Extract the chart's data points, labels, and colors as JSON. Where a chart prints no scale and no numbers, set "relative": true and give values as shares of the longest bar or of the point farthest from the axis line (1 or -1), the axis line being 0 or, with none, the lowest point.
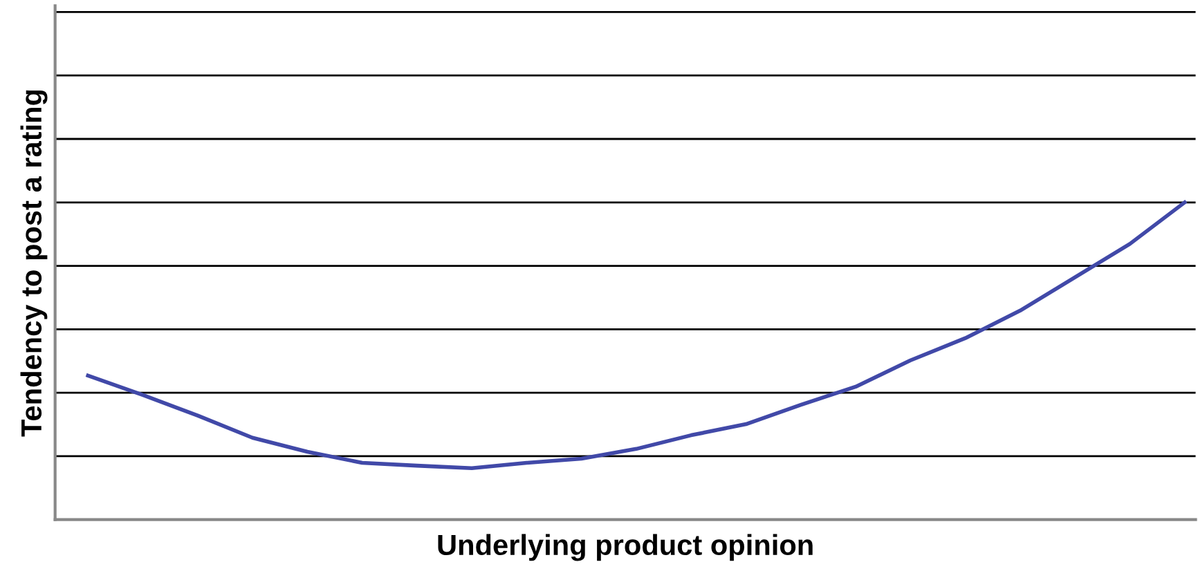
{
  "chart_data": {
    "type": "line",
    "relative": true,
    "xlabel": "Underlying product opinion",
    "ylabel": "Tendency to post a rating",
    "categories": [
      null,
      null,
      null,
      null,
      null,
      null,
      null,
      null,
      null,
      null,
      null,
      null,
      null,
      null,
      null,
      null,
      null,
      null,
      null,
      null,
      null
    ],
    "series": [
      {
        "color": "#4149a8",
        "values": [
          0.454,
          0.393,
          0.328,
          0.258,
          0.214,
          0.179,
          0.17,
          0.162,
          0.179,
          0.192,
          0.223,
          0.266,
          0.301,
          0.362,
          0.419,
          0.502,
          0.572,
          0.659,
          0.764,
          0.869,
          1.0
        ]
      }
    ],
    "grid": "y",
    "marker": "none",
    "line_style": "solid"
  }
}
